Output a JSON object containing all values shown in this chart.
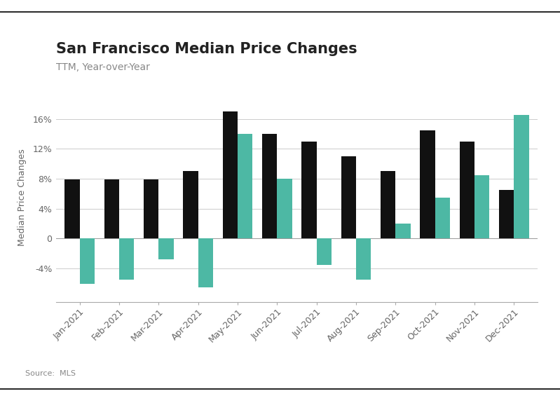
{
  "title": "San Francisco Median Price Changes",
  "subtitle": "TTM, Year-over-Year",
  "ylabel": "Median Price Changes",
  "source": "Source:  MLS",
  "categories": [
    "Jan-2021",
    "Feb-2021",
    "Mar-2021",
    "Apr-2021",
    "May-2021",
    "Jun-2021",
    "Jul-2021",
    "Aug-2021",
    "Sep-2021",
    "Oct-2021",
    "Nov-2021",
    "Dec-2021"
  ],
  "sfh_values": [
    7.9,
    7.9,
    7.9,
    9.0,
    17.0,
    14.0,
    13.0,
    11.0,
    9.0,
    14.5,
    13.0,
    6.5
  ],
  "condo_values": [
    -6.0,
    -5.5,
    -2.8,
    -6.5,
    14.0,
    8.0,
    -3.5,
    -5.5,
    2.0,
    5.5,
    8.5,
    16.5
  ],
  "sfh_color": "#111111",
  "condo_color": "#4db8a4",
  "background_color": "#ffffff",
  "grid_color": "#cccccc",
  "ytick_labels": [
    "-4%",
    "0",
    "4%",
    "8%",
    "12%",
    "16%"
  ],
  "ytick_values": [
    -4,
    0,
    4,
    8,
    12,
    16
  ],
  "ylim": [
    -8.5,
    19.5
  ],
  "title_fontsize": 15,
  "subtitle_fontsize": 10,
  "legend_fontsize": 10,
  "axis_fontsize": 9,
  "ylabel_fontsize": 9
}
